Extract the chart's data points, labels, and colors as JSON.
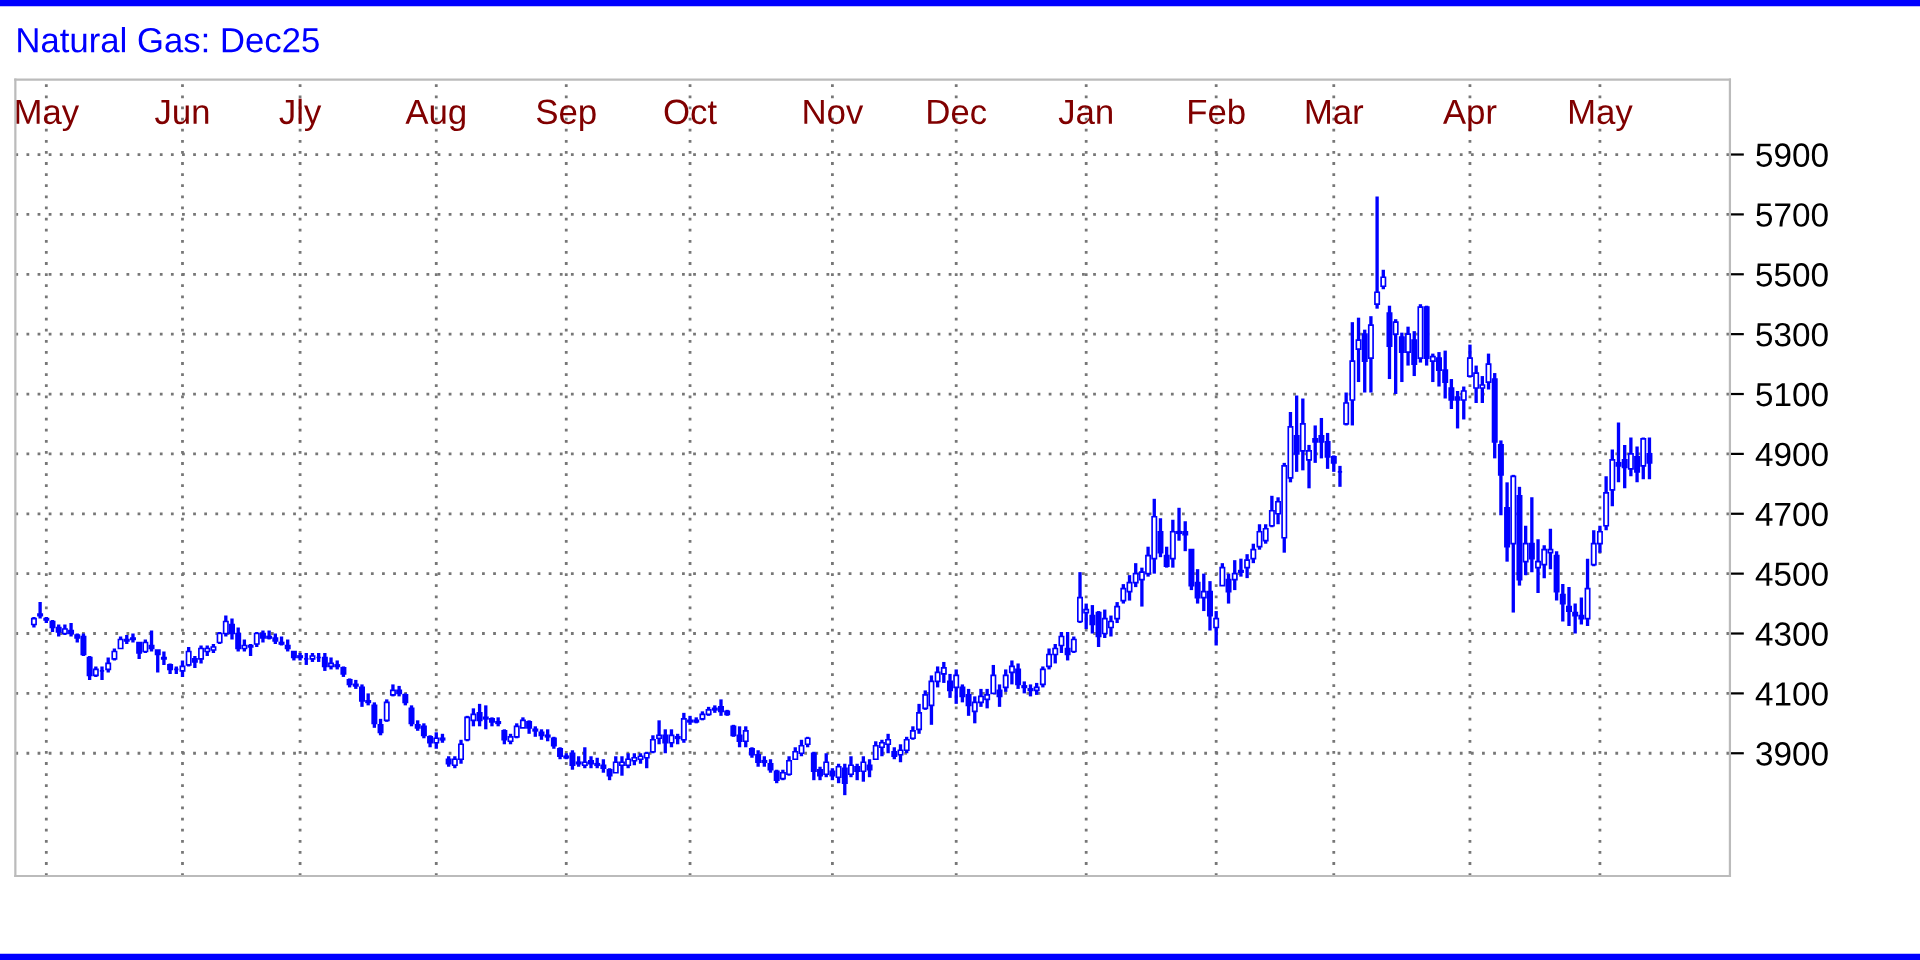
{
  "chart_data": {
    "type": "candlestick",
    "title": "Natural Gas: Dec25",
    "color": "#0000ff",
    "grid": true,
    "ylim": [
      3490,
      6150
    ],
    "yticks": [
      3900,
      4100,
      4300,
      4500,
      4700,
      4900,
      5100,
      5300,
      5500,
      5700,
      5900
    ],
    "categories": [
      null,
      null,
      "May",
      null,
      null,
      null,
      null,
      null,
      null,
      null,
      null,
      null,
      null,
      null,
      null,
      null,
      null,
      null,
      null,
      null,
      null,
      null,
      null,
      null,
      "Jun",
      null,
      null,
      null,
      null,
      null,
      null,
      null,
      null,
      null,
      null,
      null,
      null,
      null,
      null,
      null,
      null,
      null,
      null,
      "Jly",
      null,
      null,
      null,
      null,
      null,
      null,
      null,
      null,
      null,
      null,
      null,
      null,
      null,
      null,
      null,
      null,
      null,
      null,
      null,
      null,
      null,
      "Aug",
      null,
      null,
      null,
      null,
      null,
      null,
      null,
      null,
      null,
      null,
      null,
      null,
      null,
      null,
      null,
      null,
      null,
      null,
      null,
      null,
      "Sep",
      null,
      null,
      null,
      null,
      null,
      null,
      null,
      null,
      null,
      null,
      null,
      null,
      null,
      null,
      null,
      null,
      null,
      null,
      null,
      "Oct",
      null,
      null,
      null,
      null,
      null,
      null,
      null,
      null,
      null,
      null,
      null,
      null,
      null,
      null,
      null,
      null,
      null,
      null,
      null,
      null,
      null,
      null,
      "Nov",
      null,
      null,
      null,
      null,
      null,
      null,
      null,
      null,
      null,
      null,
      null,
      null,
      null,
      null,
      null,
      null,
      null,
      null,
      null,
      "Dec",
      null,
      null,
      null,
      null,
      null,
      null,
      null,
      null,
      null,
      null,
      null,
      null,
      null,
      null,
      null,
      null,
      null,
      null,
      null,
      null,
      "Jan",
      null,
      null,
      null,
      null,
      null,
      null,
      null,
      null,
      null,
      null,
      null,
      null,
      null,
      null,
      null,
      null,
      null,
      null,
      null,
      null,
      "Feb",
      null,
      null,
      null,
      null,
      null,
      null,
      null,
      null,
      null,
      null,
      null,
      null,
      null,
      null,
      null,
      null,
      null,
      null,
      "Mar",
      null,
      null,
      null,
      null,
      null,
      null,
      null,
      null,
      null,
      null,
      null,
      null,
      null,
      null,
      null,
      null,
      null,
      null,
      null,
      null,
      null,
      "Apr",
      null,
      null,
      null,
      null,
      null,
      null,
      null,
      null,
      null,
      null,
      null,
      null,
      null,
      null,
      null,
      null,
      null,
      null,
      null,
      null,
      "May",
      null,
      null,
      null,
      null,
      null,
      null,
      null,
      null
    ],
    "ohlc": [
      [
        4330,
        4355,
        4320,
        4350
      ],
      [
        4360,
        4405,
        4350,
        4365
      ],
      [
        4350,
        4355,
        4335,
        4345
      ],
      [
        4340,
        4345,
        4305,
        4320
      ],
      [
        4320,
        4330,
        4290,
        4305
      ],
      [
        4300,
        4330,
        4295,
        4315
      ],
      [
        4310,
        4335,
        4290,
        4300
      ],
      [
        4295,
        4300,
        4270,
        4285
      ],
      [
        4290,
        4300,
        4225,
        4230
      ],
      [
        4220,
        4225,
        4145,
        4160
      ],
      [
        4160,
        4190,
        4155,
        4180
      ],
      [
        4175,
        4190,
        4145,
        4175
      ],
      [
        4180,
        4220,
        4170,
        4200
      ],
      [
        4215,
        4250,
        4210,
        4240
      ],
      [
        4250,
        4290,
        4250,
        4280
      ],
      [
        4275,
        4295,
        4265,
        4280
      ],
      [
        4285,
        4300,
        4270,
        4280
      ],
      [
        4270,
        4270,
        4215,
        4235
      ],
      [
        4240,
        4280,
        4235,
        4270
      ],
      [
        4260,
        4310,
        4240,
        4250
      ],
      [
        4245,
        4245,
        4170,
        4230
      ],
      [
        4220,
        4240,
        4195,
        4215
      ],
      [
        4195,
        4200,
        4165,
        4180
      ],
      [
        4180,
        4190,
        4165,
        4180
      ],
      [
        4175,
        4210,
        4155,
        4190
      ],
      [
        4195,
        4255,
        4190,
        4240
      ],
      [
        4215,
        4225,
        4185,
        4205
      ],
      [
        4215,
        4260,
        4200,
        4250
      ],
      [
        4240,
        4260,
        4225,
        4250
      ],
      [
        4245,
        4265,
        4235,
        4255
      ],
      [
        4270,
        4305,
        4265,
        4300
      ],
      [
        4300,
        4360,
        4290,
        4340
      ],
      [
        4330,
        4350,
        4280,
        4300
      ],
      [
        4300,
        4320,
        4240,
        4250
      ],
      [
        4250,
        4280,
        4240,
        4260
      ],
      [
        4255,
        4265,
        4225,
        4260
      ],
      [
        4265,
        4305,
        4255,
        4300
      ],
      [
        4300,
        4310,
        4270,
        4285
      ],
      [
        4290,
        4310,
        4280,
        4285
      ],
      [
        4285,
        4300,
        4265,
        4275
      ],
      [
        4270,
        4290,
        4260,
        4265
      ],
      [
        4260,
        4280,
        4240,
        4250
      ],
      [
        4240,
        4240,
        4210,
        4220
      ],
      [
        4220,
        4235,
        4210,
        4225
      ],
      [
        4215,
        4235,
        4195,
        4215
      ],
      [
        4215,
        4235,
        4205,
        4225
      ],
      [
        4220,
        4235,
        4205,
        4220
      ],
      [
        4220,
        4235,
        4175,
        4190
      ],
      [
        4190,
        4220,
        4180,
        4200
      ],
      [
        4195,
        4210,
        4180,
        4190
      ],
      [
        4185,
        4190,
        4155,
        4165
      ],
      [
        4145,
        4150,
        4120,
        4130
      ],
      [
        4130,
        4145,
        4115,
        4125
      ],
      [
        4120,
        4130,
        4055,
        4075
      ],
      [
        4070,
        4100,
        4060,
        4075
      ],
      [
        4060,
        4070,
        3985,
        4000
      ],
      [
        3995,
        4015,
        3960,
        3970
      ],
      [
        4010,
        4080,
        4005,
        4070
      ],
      [
        4095,
        4130,
        4090,
        4110
      ],
      [
        4110,
        4125,
        4090,
        4100
      ],
      [
        4095,
        4100,
        4060,
        4070
      ],
      [
        4050,
        4060,
        3990,
        4000
      ],
      [
        3995,
        4010,
        3975,
        3985
      ],
      [
        3990,
        4000,
        3950,
        3960
      ],
      [
        3955,
        3960,
        3920,
        3935
      ],
      [
        3935,
        3970,
        3915,
        3950
      ],
      [
        3950,
        3965,
        3935,
        3945
      ],
      [
        3880,
        3890,
        3855,
        3865
      ],
      [
        3860,
        3890,
        3850,
        3880
      ],
      [
        3880,
        3945,
        3865,
        3930
      ],
      [
        3945,
        4025,
        3940,
        4020
      ],
      [
        4010,
        4050,
        3990,
        4030
      ],
      [
        4035,
        4065,
        3990,
        4010
      ],
      [
        4015,
        4060,
        3980,
        4020
      ],
      [
        4015,
        4020,
        3990,
        4005
      ],
      [
        4005,
        4020,
        3990,
        4000
      ],
      [
        3975,
        3980,
        3930,
        3945
      ],
      [
        3940,
        3965,
        3930,
        3955
      ],
      [
        3955,
        4000,
        3950,
        3990
      ],
      [
        3985,
        4020,
        3985,
        4010
      ],
      [
        4005,
        4010,
        3965,
        3985
      ],
      [
        3980,
        3990,
        3955,
        3975
      ],
      [
        3970,
        3980,
        3945,
        3960
      ],
      [
        3960,
        3980,
        3940,
        3955
      ],
      [
        3950,
        3955,
        3915,
        3925
      ],
      [
        3915,
        3920,
        3880,
        3890
      ],
      [
        3890,
        3900,
        3880,
        3885
      ],
      [
        3900,
        3910,
        3845,
        3860
      ],
      [
        3865,
        3890,
        3855,
        3870
      ],
      [
        3860,
        3920,
        3850,
        3870
      ],
      [
        3875,
        3890,
        3850,
        3865
      ],
      [
        3860,
        3885,
        3850,
        3865
      ],
      [
        3860,
        3880,
        3835,
        3850
      ],
      [
        3845,
        3850,
        3810,
        3825
      ],
      [
        3835,
        3890,
        3835,
        3870
      ],
      [
        3860,
        3890,
        3825,
        3870
      ],
      [
        3860,
        3900,
        3850,
        3880
      ],
      [
        3875,
        3900,
        3860,
        3885
      ],
      [
        3880,
        3900,
        3865,
        3890
      ],
      [
        3885,
        3905,
        3850,
        3900
      ],
      [
        3905,
        3960,
        3900,
        3945
      ],
      [
        3950,
        4010,
        3930,
        3960
      ],
      [
        3960,
        3980,
        3900,
        3935
      ],
      [
        3935,
        3980,
        3920,
        3960
      ],
      [
        3950,
        3965,
        3930,
        3955
      ],
      [
        3945,
        4035,
        3935,
        4015
      ],
      [
        4010,
        4025,
        3995,
        4005
      ],
      [
        4005,
        4020,
        4000,
        4010
      ],
      [
        4015,
        4040,
        4010,
        4030
      ],
      [
        4030,
        4055,
        4025,
        4045
      ],
      [
        4045,
        4060,
        4035,
        4050
      ],
      [
        4055,
        4080,
        4025,
        4040
      ],
      [
        4040,
        4045,
        4025,
        4030
      ],
      [
        3990,
        3995,
        3955,
        3960
      ],
      [
        3960,
        3990,
        3920,
        3940
      ],
      [
        3940,
        3990,
        3920,
        3975
      ],
      [
        3915,
        3920,
        3885,
        3895
      ],
      [
        3895,
        3910,
        3855,
        3870
      ],
      [
        3870,
        3890,
        3855,
        3875
      ],
      [
        3865,
        3880,
        3835,
        3845
      ],
      [
        3840,
        3845,
        3800,
        3810
      ],
      [
        3815,
        3845,
        3810,
        3835
      ],
      [
        3830,
        3890,
        3825,
        3875
      ],
      [
        3880,
        3920,
        3880,
        3905
      ],
      [
        3900,
        3945,
        3890,
        3925
      ],
      [
        3930,
        3955,
        3920,
        3950
      ],
      [
        3900,
        3905,
        3810,
        3840
      ],
      [
        3845,
        3855,
        3810,
        3825
      ],
      [
        3830,
        3900,
        3820,
        3870
      ],
      [
        3840,
        3850,
        3810,
        3825
      ],
      [
        3820,
        3865,
        3800,
        3855
      ],
      [
        3850,
        3865,
        3760,
        3800
      ],
      [
        3830,
        3890,
        3820,
        3860
      ],
      [
        3855,
        3865,
        3810,
        3840
      ],
      [
        3840,
        3890,
        3805,
        3870
      ],
      [
        3860,
        3880,
        3820,
        3845
      ],
      [
        3880,
        3940,
        3880,
        3925
      ],
      [
        3920,
        3945,
        3890,
        3935
      ],
      [
        3930,
        3965,
        3900,
        3945
      ],
      [
        3905,
        3920,
        3880,
        3890
      ],
      [
        3895,
        3930,
        3870,
        3910
      ],
      [
        3910,
        3955,
        3900,
        3945
      ],
      [
        3950,
        3990,
        3945,
        3975
      ],
      [
        3980,
        4065,
        3965,
        4035
      ],
      [
        4050,
        4110,
        4045,
        4095
      ],
      [
        4060,
        4160,
        3995,
        4140
      ],
      [
        4140,
        4190,
        4120,
        4170
      ],
      [
        4165,
        4205,
        4135,
        4185
      ],
      [
        4140,
        4165,
        4085,
        4110
      ],
      [
        4120,
        4180,
        4065,
        4160
      ],
      [
        4120,
        4130,
        4070,
        4090
      ],
      [
        4095,
        4115,
        4025,
        4060
      ],
      [
        4040,
        4090,
        4000,
        4070
      ],
      [
        4070,
        4115,
        4055,
        4090
      ],
      [
        4080,
        4115,
        4050,
        4095
      ],
      [
        4100,
        4195,
        4100,
        4160
      ],
      [
        4110,
        4130,
        4055,
        4090
      ],
      [
        4120,
        4180,
        4105,
        4160
      ],
      [
        4170,
        4210,
        4130,
        4190
      ],
      [
        4180,
        4200,
        4115,
        4130
      ],
      [
        4125,
        4140,
        4100,
        4120
      ],
      [
        4110,
        4130,
        4090,
        4115
      ],
      [
        4110,
        4135,
        4095,
        4120
      ],
      [
        4130,
        4190,
        4120,
        4180
      ],
      [
        4190,
        4250,
        4180,
        4230
      ],
      [
        4230,
        4265,
        4200,
        4250
      ],
      [
        4260,
        4305,
        4235,
        4290
      ],
      [
        4250,
        4305,
        4210,
        4230
      ],
      [
        4240,
        4290,
        4235,
        4280
      ],
      [
        4340,
        4505,
        4335,
        4420
      ],
      [
        4370,
        4400,
        4315,
        4380
      ],
      [
        4360,
        4395,
        4300,
        4330
      ],
      [
        4370,
        4375,
        4255,
        4290
      ],
      [
        4300,
        4380,
        4285,
        4350
      ],
      [
        4320,
        4360,
        4290,
        4340
      ],
      [
        4350,
        4405,
        4335,
        4390
      ],
      [
        4410,
        4465,
        4400,
        4450
      ],
      [
        4440,
        4495,
        4410,
        4470
      ],
      [
        4470,
        4535,
        4455,
        4500
      ],
      [
        4480,
        4520,
        4390,
        4505
      ],
      [
        4500,
        4590,
        4490,
        4560
      ],
      [
        4550,
        4750,
        4500,
        4690
      ],
      [
        4640,
        4685,
        4555,
        4570
      ],
      [
        4560,
        4590,
        4520,
        4525
      ],
      [
        4550,
        4680,
        4520,
        4640
      ],
      [
        4640,
        4720,
        4610,
        4635
      ],
      [
        4640,
        4675,
        4575,
        4630
      ],
      [
        4580,
        4580,
        4445,
        4460
      ],
      [
        4470,
        4515,
        4400,
        4420
      ],
      [
        4420,
        4500,
        4375,
        4440
      ],
      [
        4440,
        4475,
        4310,
        4360
      ],
      [
        4320,
        4375,
        4260,
        4350
      ],
      [
        4460,
        4535,
        4460,
        4520
      ],
      [
        4480,
        4500,
        4400,
        4440
      ],
      [
        4480,
        4545,
        4445,
        4500
      ],
      [
        4505,
        4550,
        4490,
        4510
      ],
      [
        4520,
        4565,
        4485,
        4545
      ],
      [
        4550,
        4600,
        4535,
        4580
      ],
      [
        4590,
        4665,
        4580,
        4640
      ],
      [
        4610,
        4665,
        4600,
        4650
      ],
      [
        4660,
        4760,
        4655,
        4710
      ],
      [
        4700,
        4755,
        4665,
        4740
      ],
      [
        4620,
        4870,
        4570,
        4860
      ],
      [
        4820,
        5040,
        4805,
        4990
      ],
      [
        4960,
        5095,
        4840,
        4900
      ],
      [
        4910,
        5085,
        4845,
        5000
      ],
      [
        4880,
        4930,
        4785,
        4910
      ],
      [
        4950,
        4995,
        4870,
        4940
      ],
      [
        4960,
        5020,
        4885,
        4940
      ],
      [
        4940,
        4970,
        4850,
        4890
      ],
      [
        4890,
        4895,
        4840,
        4870
      ],
      [
        4840,
        4860,
        4790,
        4840
      ],
      [
        5000,
        5105,
        4995,
        5070
      ],
      [
        5080,
        5340,
        4995,
        5210
      ],
      [
        5250,
        5355,
        5140,
        5280
      ],
      [
        5300,
        5315,
        5105,
        5210
      ],
      [
        5220,
        5360,
        5105,
        5330
      ],
      [
        5400,
        5760,
        5385,
        5440
      ],
      [
        5460,
        5515,
        5450,
        5490
      ],
      [
        5370,
        5395,
        5150,
        5260
      ],
      [
        5300,
        5350,
        5100,
        5340
      ],
      [
        5290,
        5305,
        5140,
        5240
      ],
      [
        5240,
        5325,
        5195,
        5300
      ],
      [
        5280,
        5310,
        5160,
        5200
      ],
      [
        5220,
        5400,
        5205,
        5390
      ],
      [
        5390,
        5395,
        5195,
        5220
      ],
      [
        5210,
        5235,
        5140,
        5225
      ],
      [
        5220,
        5240,
        5125,
        5180
      ],
      [
        5180,
        5245,
        5085,
        5140
      ],
      [
        5120,
        5150,
        5050,
        5080
      ],
      [
        5090,
        5110,
        4985,
        5080
      ],
      [
        5080,
        5125,
        5015,
        5110
      ],
      [
        5160,
        5265,
        5155,
        5220
      ],
      [
        5120,
        5195,
        5070,
        5170
      ],
      [
        5120,
        5160,
        5070,
        5130
      ],
      [
        5140,
        5235,
        5115,
        5200
      ],
      [
        5150,
        5170,
        4885,
        4940
      ],
      [
        4930,
        4945,
        4695,
        4830
      ],
      [
        4720,
        4805,
        4540,
        4590
      ],
      [
        4600,
        4830,
        4370,
        4825
      ],
      [
        4760,
        4790,
        4460,
        4480
      ],
      [
        4540,
        4660,
        4495,
        4600
      ],
      [
        4600,
        4755,
        4505,
        4550
      ],
      [
        4520,
        4615,
        4435,
        4540
      ],
      [
        4530,
        4595,
        4485,
        4580
      ],
      [
        4570,
        4650,
        4515,
        4580
      ],
      [
        4560,
        4575,
        4410,
        4440
      ],
      [
        4430,
        4465,
        4340,
        4400
      ],
      [
        4390,
        4455,
        4325,
        4375
      ],
      [
        4370,
        4400,
        4300,
        4360
      ],
      [
        4360,
        4420,
        4330,
        4350
      ],
      [
        4350,
        4550,
        4325,
        4450
      ],
      [
        4530,
        4645,
        4525,
        4600
      ],
      [
        4600,
        4660,
        4570,
        4640
      ],
      [
        4660,
        4825,
        4645,
        4770
      ],
      [
        4780,
        4915,
        4725,
        4880
      ],
      [
        4870,
        5005,
        4805,
        4860
      ],
      [
        4880,
        4930,
        4785,
        4855
      ],
      [
        4850,
        4955,
        4825,
        4900
      ],
      [
        4890,
        4925,
        4805,
        4840
      ],
      [
        4860,
        4955,
        4815,
        4950
      ],
      [
        4900,
        4955,
        4815,
        4870
      ]
    ]
  }
}
